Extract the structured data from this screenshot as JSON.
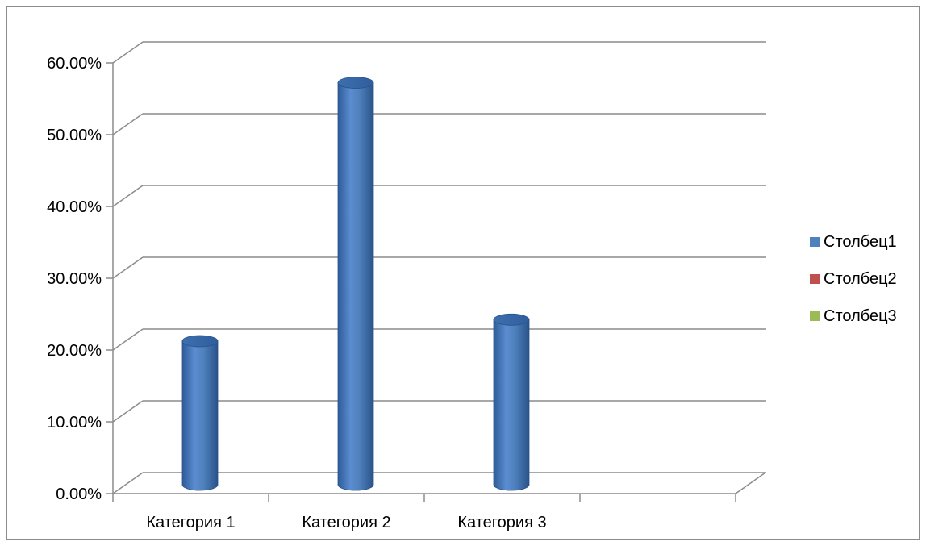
{
  "chart_data": {
    "type": "bar",
    "style": "3d-cylinder",
    "categories": [
      "Категория 1",
      "Категория 2",
      "Категория 3",
      ""
    ],
    "series": [
      {
        "name": "Столбец1",
        "values": [
          20,
          56,
          23,
          null
        ],
        "color": "#4F81BD"
      },
      {
        "name": "Столбец2",
        "values": [
          null,
          null,
          null,
          null
        ],
        "color": "#C0504D"
      },
      {
        "name": "Столбец3",
        "values": [
          null,
          null,
          null,
          null
        ],
        "color": "#9BBB59"
      }
    ],
    "y_ticks": [
      "0.00%",
      "10.00%",
      "20.00%",
      "30.00%",
      "40.00%",
      "50.00%",
      "60.00%"
    ],
    "ylim": [
      0,
      60
    ],
    "grid": true,
    "legend_position": "right",
    "title": "",
    "xlabel": "",
    "ylabel": ""
  }
}
